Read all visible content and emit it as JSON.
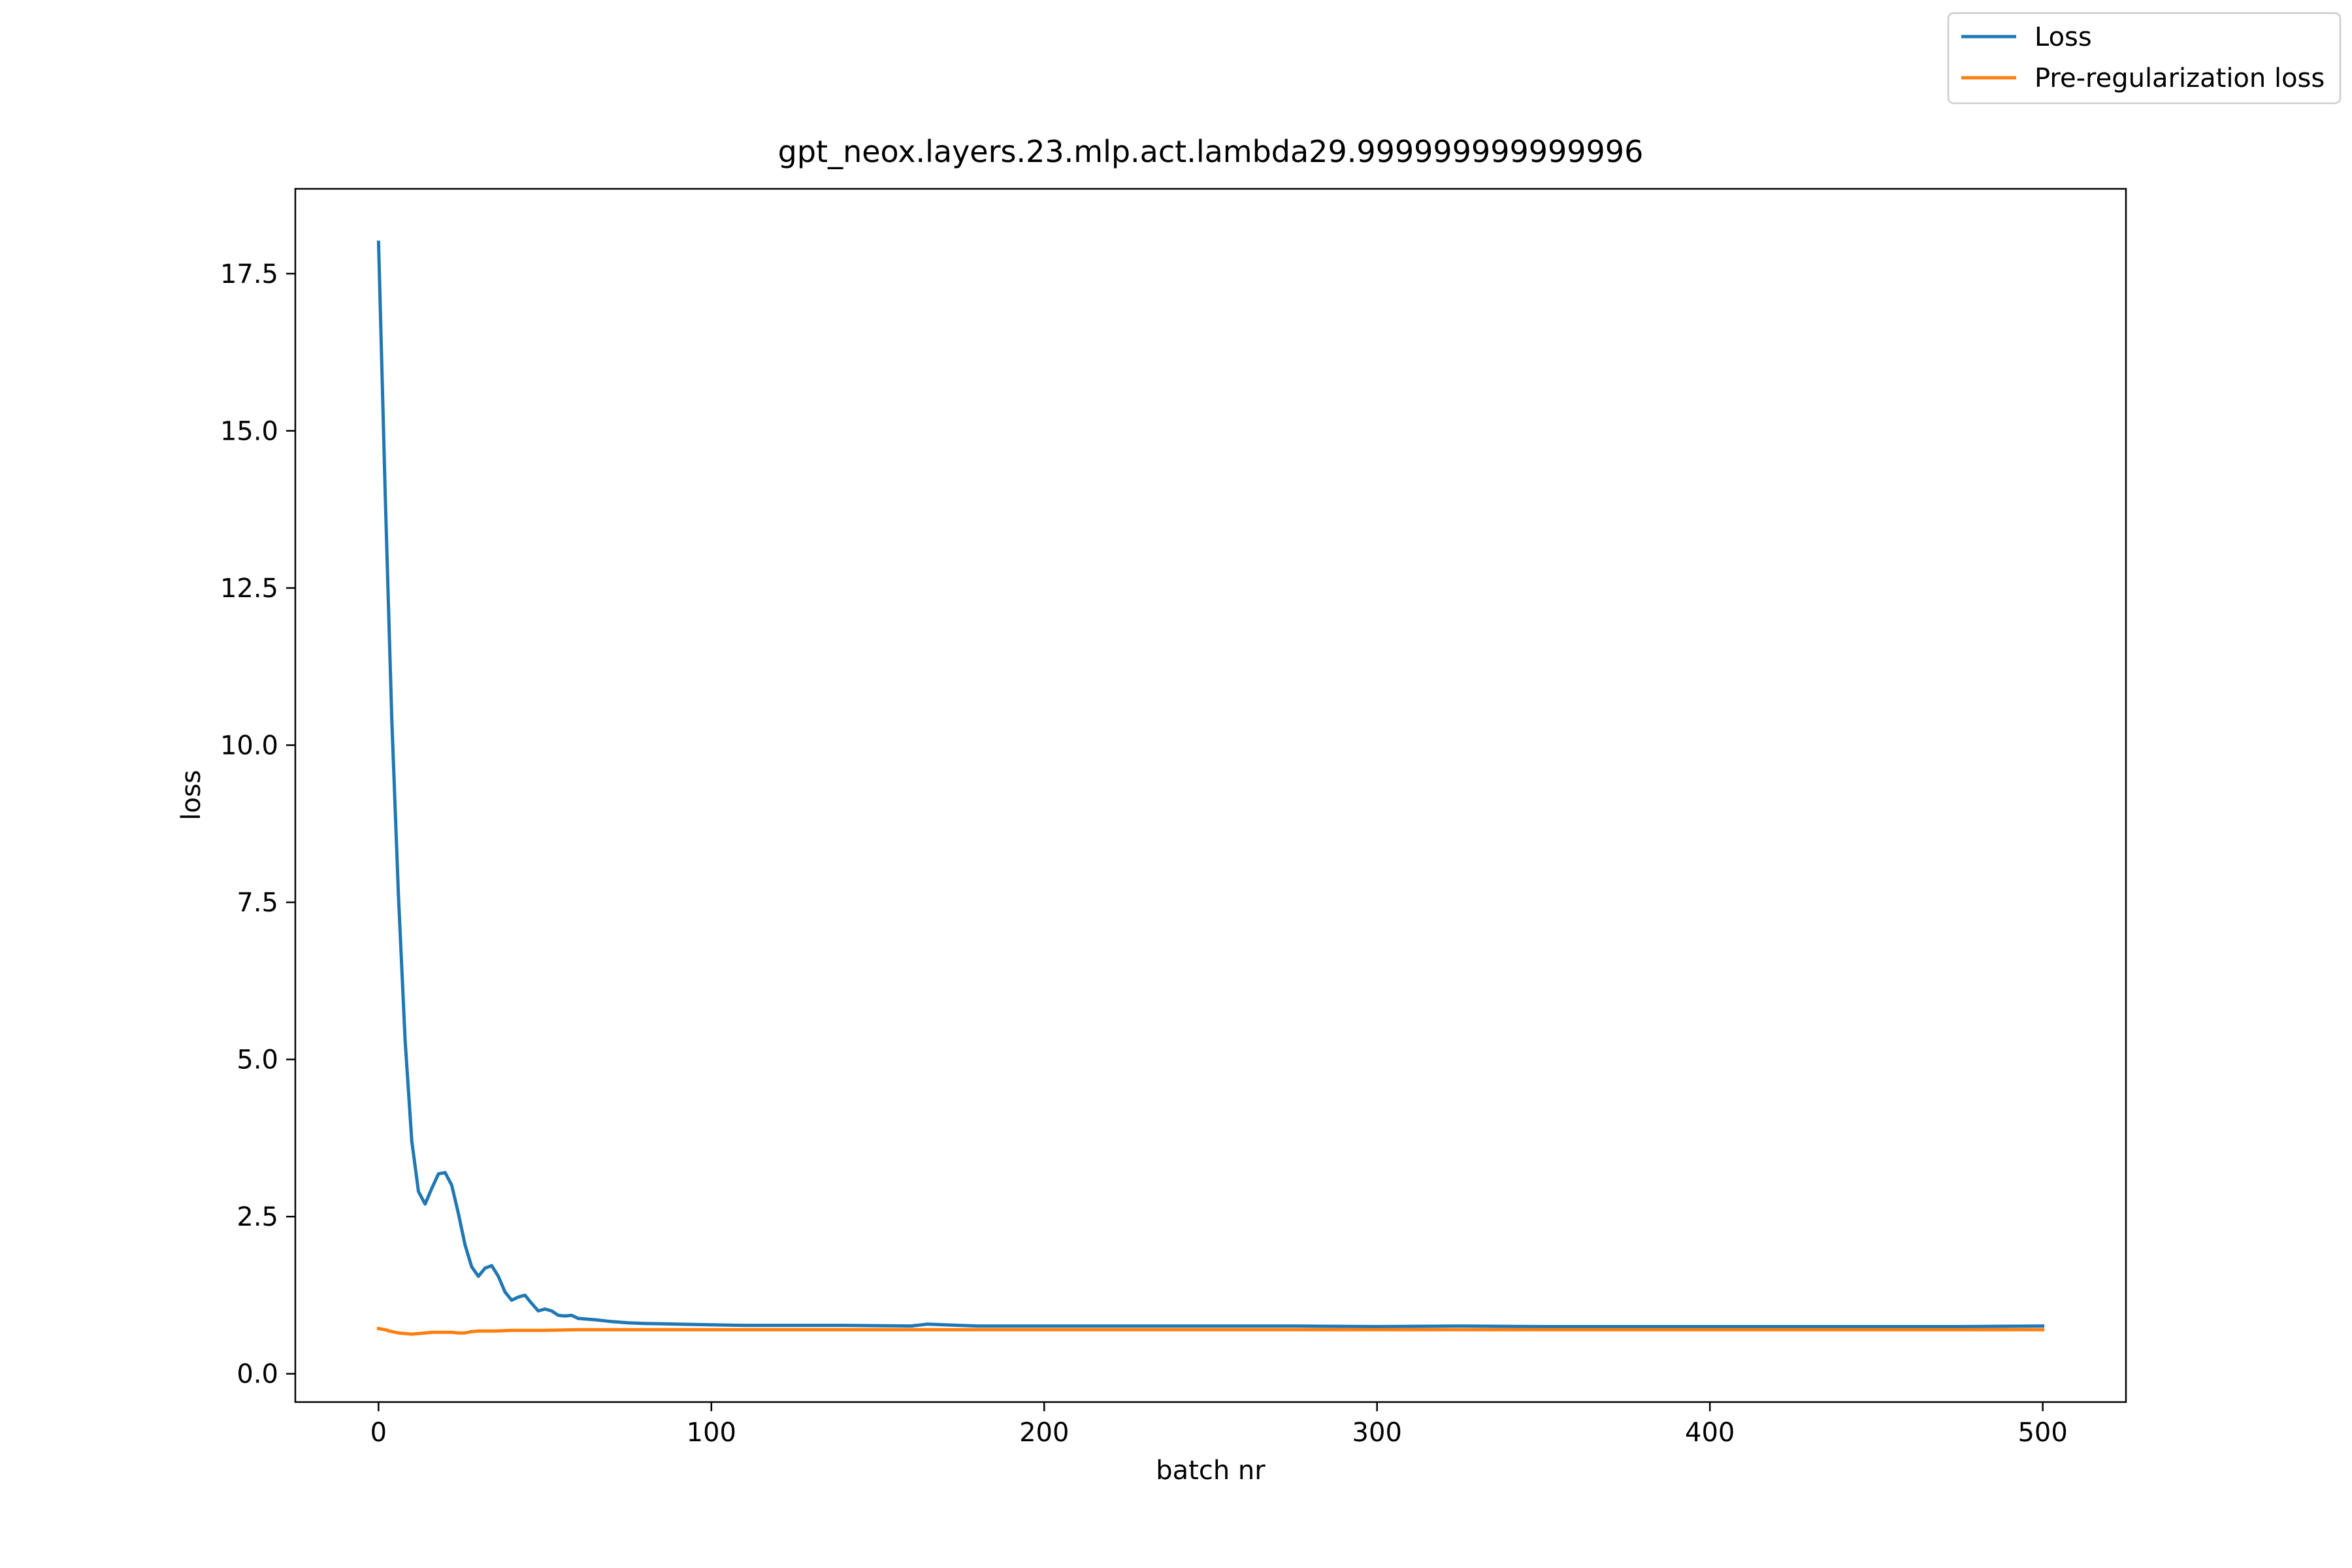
{
  "chart_data": {
    "type": "line",
    "title": "gpt_neox.layers.23.mlp.act.lambda29.999999999999996",
    "xlabel": "batch nr",
    "ylabel": "loss",
    "xlim": [
      -25,
      525
    ],
    "ylim": [
      -0.45,
      18.85
    ],
    "xticks": [
      0,
      100,
      200,
      300,
      400,
      500
    ],
    "xtick_labels": [
      "0",
      "100",
      "200",
      "300",
      "400",
      "500"
    ],
    "yticks": [
      0.0,
      2.5,
      5.0,
      7.5,
      10.0,
      12.5,
      15.0,
      17.5
    ],
    "ytick_labels": [
      "0.0",
      "2.5",
      "5.0",
      "7.5",
      "10.0",
      "12.5",
      "15.0",
      "17.5"
    ],
    "grid": false,
    "legend_position": "top-right (outside axes)",
    "series": [
      {
        "name": "Loss",
        "color": "#1f77b4",
        "points": [
          [
            0,
            18.0
          ],
          [
            2,
            14.0
          ],
          [
            4,
            10.4
          ],
          [
            6,
            7.6
          ],
          [
            8,
            5.3
          ],
          [
            10,
            3.7
          ],
          [
            12,
            2.9
          ],
          [
            14,
            2.7
          ],
          [
            16,
            2.95
          ],
          [
            18,
            3.18
          ],
          [
            20,
            3.2
          ],
          [
            22,
            3.0
          ],
          [
            24,
            2.55
          ],
          [
            26,
            2.05
          ],
          [
            28,
            1.7
          ],
          [
            30,
            1.55
          ],
          [
            32,
            1.68
          ],
          [
            34,
            1.72
          ],
          [
            36,
            1.55
          ],
          [
            38,
            1.3
          ],
          [
            40,
            1.17
          ],
          [
            42,
            1.22
          ],
          [
            44,
            1.25
          ],
          [
            46,
            1.12
          ],
          [
            48,
            1.0
          ],
          [
            50,
            1.03
          ],
          [
            52,
            1.0
          ],
          [
            54,
            0.93
          ],
          [
            56,
            0.92
          ],
          [
            58,
            0.93
          ],
          [
            60,
            0.88
          ],
          [
            65,
            0.86
          ],
          [
            70,
            0.83
          ],
          [
            75,
            0.81
          ],
          [
            80,
            0.8
          ],
          [
            90,
            0.79
          ],
          [
            100,
            0.78
          ],
          [
            110,
            0.77
          ],
          [
            120,
            0.77
          ],
          [
            140,
            0.77
          ],
          [
            160,
            0.76
          ],
          [
            165,
            0.79
          ],
          [
            170,
            0.78
          ],
          [
            180,
            0.76
          ],
          [
            200,
            0.76
          ],
          [
            220,
            0.76
          ],
          [
            250,
            0.76
          ],
          [
            275,
            0.76
          ],
          [
            300,
            0.75
          ],
          [
            325,
            0.76
          ],
          [
            350,
            0.75
          ],
          [
            375,
            0.75
          ],
          [
            400,
            0.75
          ],
          [
            425,
            0.75
          ],
          [
            450,
            0.75
          ],
          [
            475,
            0.75
          ],
          [
            500,
            0.76
          ]
        ]
      },
      {
        "name": "Pre-regularization loss",
        "color": "#ff7f0e",
        "points": [
          [
            0,
            0.72
          ],
          [
            2,
            0.7
          ],
          [
            4,
            0.67
          ],
          [
            6,
            0.65
          ],
          [
            8,
            0.64
          ],
          [
            10,
            0.63
          ],
          [
            12,
            0.64
          ],
          [
            14,
            0.65
          ],
          [
            16,
            0.66
          ],
          [
            18,
            0.66
          ],
          [
            20,
            0.66
          ],
          [
            22,
            0.66
          ],
          [
            24,
            0.65
          ],
          [
            26,
            0.65
          ],
          [
            28,
            0.67
          ],
          [
            30,
            0.68
          ],
          [
            35,
            0.68
          ],
          [
            40,
            0.69
          ],
          [
            50,
            0.69
          ],
          [
            60,
            0.7
          ],
          [
            80,
            0.7
          ],
          [
            100,
            0.7
          ],
          [
            150,
            0.7
          ],
          [
            200,
            0.7
          ],
          [
            250,
            0.7
          ],
          [
            300,
            0.7
          ],
          [
            350,
            0.7
          ],
          [
            400,
            0.7
          ],
          [
            450,
            0.7
          ],
          [
            500,
            0.7
          ]
        ]
      }
    ]
  }
}
